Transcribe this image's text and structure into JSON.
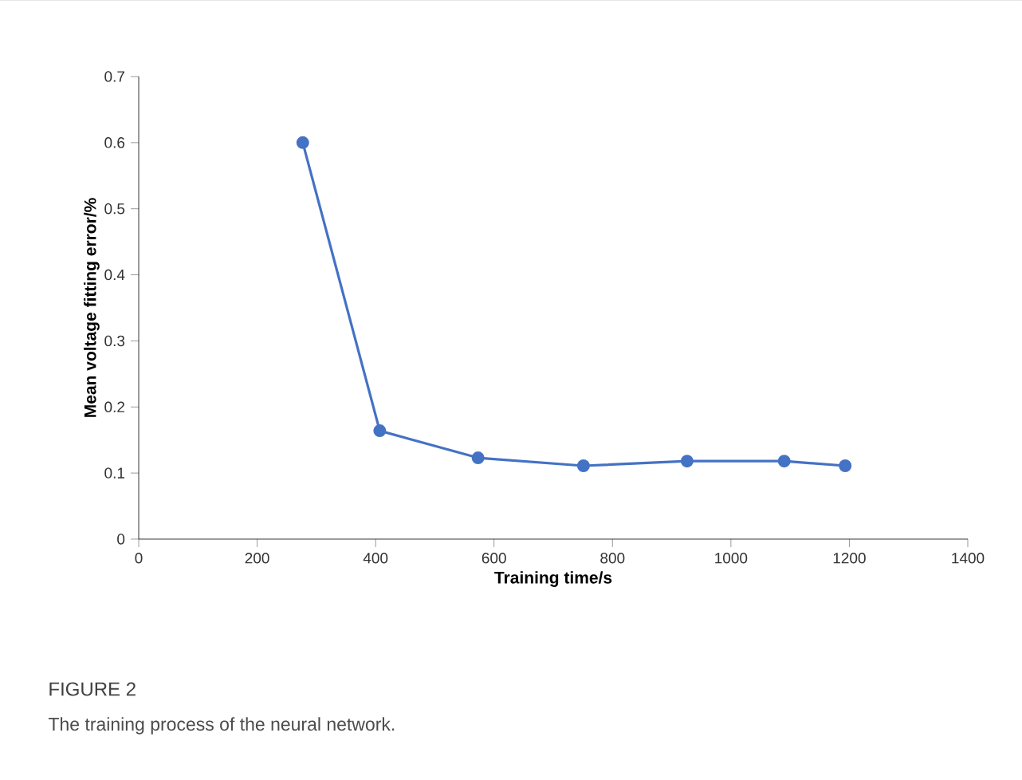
{
  "chart_data": {
    "type": "line",
    "xlabel": "Training time/s",
    "ylabel": "Mean voltage fitting error/%",
    "annotations": [
      "FIGURE 2",
      "The training process of the neural network."
    ],
    "x": [
      277,
      407,
      573,
      751,
      926,
      1090,
      1193
    ],
    "values": [
      0.6,
      0.164,
      0.123,
      0.111,
      0.118,
      0.118,
      0.111
    ],
    "color": "#4472c4",
    "marker": "circle",
    "line_style": "solid",
    "grid": false,
    "xlim": [
      0,
      1400
    ],
    "xticks": [
      0,
      200,
      400,
      600,
      800,
      1000,
      1200,
      1400
    ],
    "ylim": [
      0,
      0.7
    ],
    "yticks": [
      0,
      0.1,
      0.2,
      0.3,
      0.4,
      0.5,
      0.6,
      0.7
    ]
  }
}
